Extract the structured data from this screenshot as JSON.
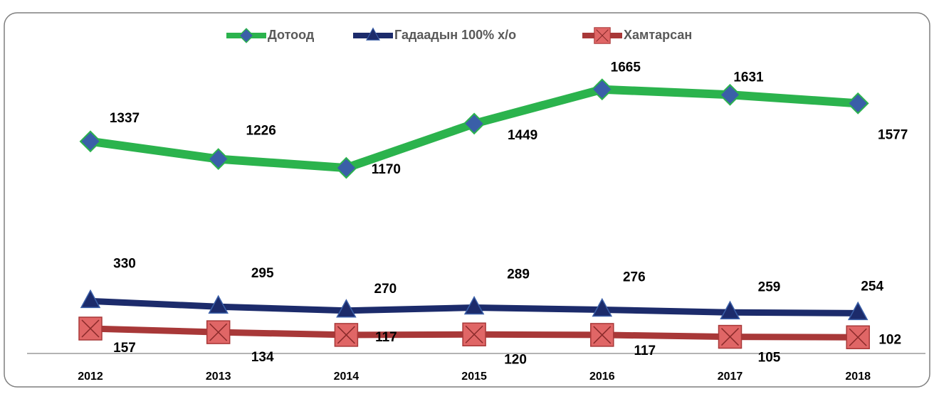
{
  "chart_data": {
    "type": "line",
    "categories": [
      "2012",
      "2013",
      "2014",
      "2015",
      "2016",
      "2017",
      "2018"
    ],
    "series": [
      {
        "name": "Дотоод",
        "color": "#2bb34d",
        "marker": "diamond",
        "values": [
          1337,
          1226,
          1170,
          1449,
          1665,
          1631,
          1577
        ]
      },
      {
        "name": "Гадаадын 100% х/о",
        "color": "#1c2b6b",
        "marker": "triangle",
        "values": [
          330,
          295,
          270,
          289,
          276,
          259,
          254
        ]
      },
      {
        "name": "Хамтарсан",
        "color": "#a83838",
        "marker": "square",
        "values": [
          157,
          134,
          117,
          120,
          117,
          105,
          102
        ]
      }
    ],
    "ylim": [
      0,
      2000
    ],
    "legend": "top"
  }
}
